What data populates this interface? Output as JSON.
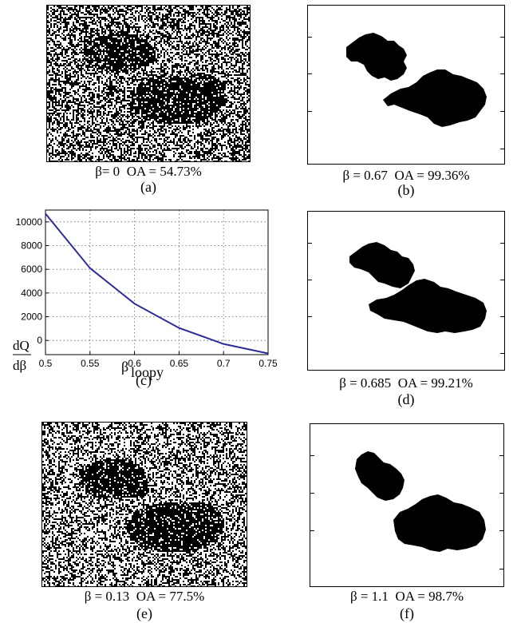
{
  "panels": {
    "a": {
      "beta_text": "β= 0",
      "oa_text": "OA = 54.73%",
      "label": "(a)"
    },
    "b": {
      "beta_text": "β = 0.67",
      "oa_text": "OA = 99.36%",
      "label": "(b)"
    },
    "d": {
      "beta_text": "β = 0.685",
      "oa_text": "OA = 99.21%",
      "label": "(d)"
    },
    "e": {
      "beta_text": "β = 0.13",
      "oa_text": "OA = 77.5%",
      "label": "(e)"
    },
    "f": {
      "beta_text": "β = 1.1",
      "oa_text": "OA = 98.7%",
      "label": "(f)"
    }
  },
  "chart_data": {
    "type": "line",
    "label": "(c)",
    "xlabel_main": "β",
    "xlabel_sub": "loopy",
    "ylabel_num": "dQ",
    "ylabel_den": "dβ",
    "x_ticks": [
      "0.5",
      "0.55",
      "0.6",
      "0.65",
      "0.7",
      "0.75"
    ],
    "y_ticks": [
      "0",
      "2000",
      "4000",
      "6000",
      "8000",
      "10000"
    ],
    "xlim": [
      0.5,
      0.75
    ],
    "ylim": [
      -1200,
      11000
    ],
    "grid": true,
    "line_color": "#2b2b9a",
    "series": [
      {
        "x": [
          0.5,
          0.55,
          0.6,
          0.65,
          0.7,
          0.75
        ],
        "y": [
          10700,
          6100,
          3100,
          1050,
          -300,
          -1100
        ]
      }
    ]
  }
}
